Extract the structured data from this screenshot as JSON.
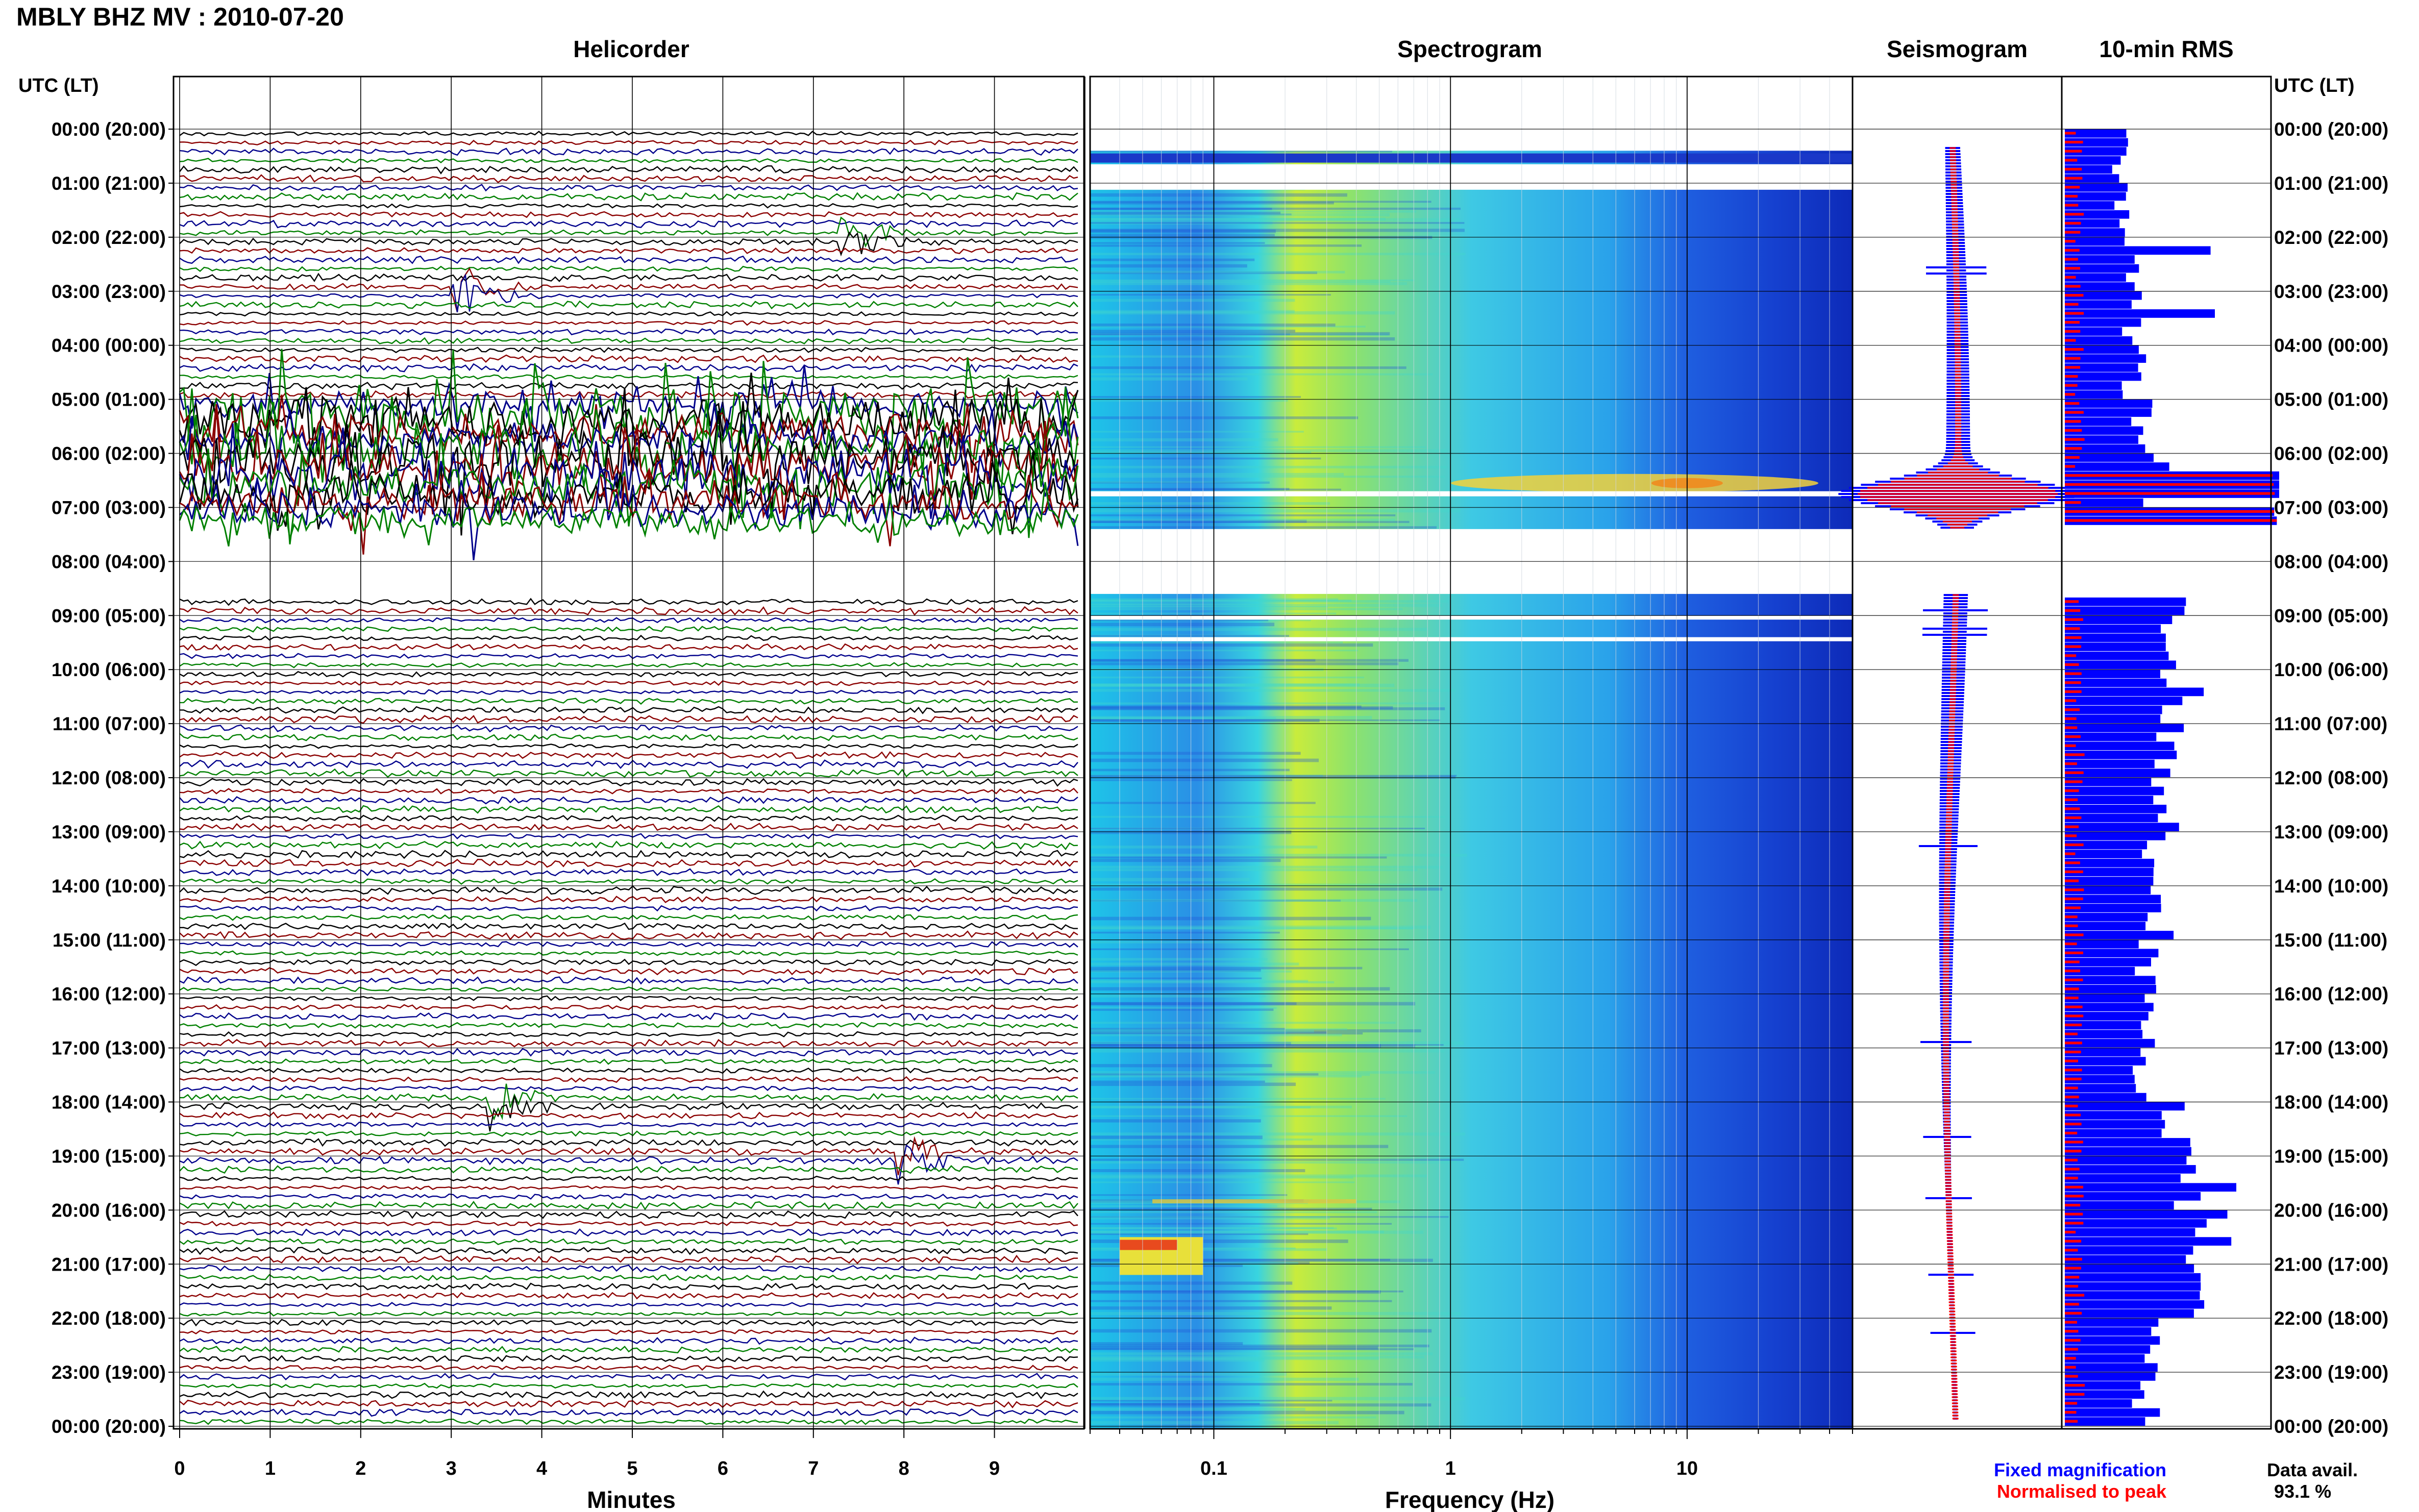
{
  "header": {
    "station_title": "MBLY BHZ MV : 2010-07-20",
    "panel_helicorder": "Helicorder",
    "panel_spectrogram": "Spectrogram",
    "panel_seismogram": "Seismogram",
    "panel_rms": "10-min RMS",
    "axis_left_title": "UTC (LT)",
    "axis_right_title": "UTC (LT)"
  },
  "time_labels": [
    "00:00 (20:00)",
    "01:00 (21:00)",
    "02:00 (22:00)",
    "03:00 (23:00)",
    "04:00 (00:00)",
    "05:00 (01:00)",
    "06:00 (02:00)",
    "07:00 (03:00)",
    "08:00 (04:00)",
    "09:00 (05:00)",
    "10:00 (06:00)",
    "11:00 (07:00)",
    "12:00 (08:00)",
    "13:00 (09:00)",
    "14:00 (10:00)",
    "15:00 (11:00)",
    "16:00 (12:00)",
    "17:00 (13:00)",
    "18:00 (14:00)",
    "19:00 (15:00)",
    "20:00 (16:00)",
    "21:00 (17:00)",
    "22:00 (18:00)",
    "23:00 (19:00)",
    "00:00 (20:00)"
  ],
  "footer": {
    "minutes_label": "Minutes",
    "frequency_label": "Frequency (Hz)",
    "legend_fixed": "Fixed magnification",
    "legend_normalised": "Normalised to peak",
    "data_avail_label": "Data avail.",
    "data_avail_value": "93.1 %"
  },
  "colors": {
    "fixed": "#0000ff",
    "normalised": "#ff0000",
    "trace_colors": [
      "#000000",
      "#8b0000",
      "#00008b",
      "#008000"
    ]
  },
  "chart_data": [
    {
      "type": "line",
      "name": "helicorder",
      "xlabel": "Minutes",
      "x_ticks": [
        0,
        1,
        2,
        3,
        4,
        5,
        6,
        7,
        8,
        9
      ],
      "xlim": [
        0,
        10
      ],
      "y_ticks_utc_hours": [
        0,
        1,
        2,
        3,
        4,
        5,
        6,
        7,
        8,
        9,
        10,
        11,
        12,
        13,
        14,
        15,
        16,
        17,
        18,
        19,
        20,
        21,
        22,
        23,
        24
      ],
      "lines_per_hour": 6,
      "gaps_utc_hours": [
        [
          7.4,
          8.6
        ]
      ],
      "events": [
        {
          "utc_hour": 2.0,
          "minute": 7.3,
          "label": ""
        },
        {
          "utc_hour": 3.0,
          "minute": 3.0,
          "label": ""
        },
        {
          "utc_hour": 18.0,
          "minute": 3.4,
          "label": ""
        },
        {
          "utc_hour": 19.0,
          "minute": 7.9,
          "label": ""
        }
      ],
      "high_noise_utc_hours": [
        5.0,
        7.4
      ]
    },
    {
      "type": "heatmap",
      "name": "spectrogram",
      "xlabel": "Frequency (Hz)",
      "x_scale": "log",
      "xlim": [
        0.03,
        50
      ],
      "x_ticks": [
        0.1,
        1,
        10
      ],
      "x_tick_labels": [
        "0.1",
        "1",
        "10"
      ],
      "colormap": "jet"
    },
    {
      "type": "line",
      "name": "seismogram",
      "series": [
        {
          "name": "Fixed magnification",
          "color": "#0000ff"
        },
        {
          "name": "Normalised to peak",
          "color": "#ff0000"
        }
      ]
    },
    {
      "type": "bar",
      "name": "rms_10min",
      "orientation": "horizontal",
      "series": [
        {
          "name": "Fixed magnification",
          "color": "#0000ff"
        },
        {
          "name": "Normalised to peak",
          "color": "#ff0000"
        }
      ],
      "bars_per_hour": 6,
      "hourly_level": [
        0.25,
        0.27,
        0.32,
        0.3,
        0.32,
        0.38,
        0.44,
        0.9,
        0.55,
        0.46,
        0.55,
        0.5,
        0.46,
        0.44,
        0.44,
        0.38,
        0.36,
        0.38,
        0.5,
        0.55,
        0.7,
        0.55,
        0.42,
        0.38,
        0.4
      ],
      "spikes": [
        {
          "utc_hour": 2.2,
          "level": 0.68
        },
        {
          "utc_hour": 3.4,
          "level": 0.7
        },
        {
          "utc_hour": 6.5,
          "level": 1.0
        },
        {
          "utc_hour": 6.8,
          "level": 1.0
        },
        {
          "utc_hour": 19.6,
          "level": 0.8
        }
      ]
    }
  ],
  "data_avail_percent": 93.1
}
